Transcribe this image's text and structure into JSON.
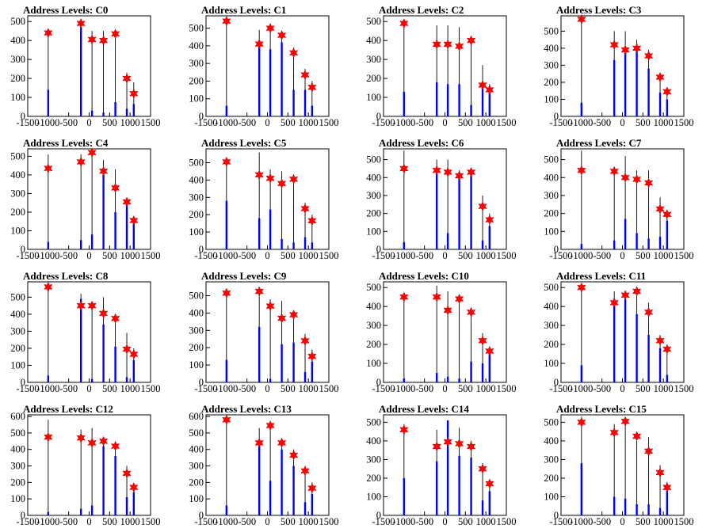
{
  "figure": {
    "title_prefix": "Address Levels: ",
    "colors": {
      "histogram": "#0000ff",
      "spike": "#000000",
      "marker": "#ff0000",
      "frame": "#000000"
    },
    "marker_shape": "star-icon"
  },
  "chart_data": [
    {
      "type": "bar",
      "title": "Address Levels: C0",
      "xlim": [
        -1500,
        1500
      ],
      "ylim": [
        0,
        530
      ],
      "xticks": [
        -1500,
        -1000,
        -500,
        0,
        500,
        1000,
        1500
      ],
      "yticks": [
        0,
        100,
        200,
        300,
        400,
        500
      ],
      "peaks": [
        {
          "x": -1000,
          "spike": 460,
          "bar": 140,
          "marker": 440
        },
        {
          "x": -200,
          "spike": 500,
          "bar": 470,
          "marker": 490
        },
        {
          "x": 70,
          "spike": 450,
          "bar": 30,
          "marker": 405
        },
        {
          "x": 350,
          "spike": 450,
          "bar": 20,
          "marker": 400
        },
        {
          "x": 640,
          "spike": 450,
          "bar": 75,
          "marker": 435
        },
        {
          "x": 920,
          "spike": 230,
          "bar": 40,
          "marker": 200
        },
        {
          "x": 1090,
          "spike": 180,
          "bar": 65,
          "marker": 120
        }
      ]
    },
    {
      "type": "bar",
      "title": "Address Levels: C1",
      "xlim": [
        -1500,
        1500
      ],
      "ylim": [
        0,
        570
      ],
      "xticks": [
        -1500,
        -1000,
        -500,
        0,
        500,
        1000,
        1500
      ],
      "yticks": [
        0,
        100,
        200,
        300,
        400,
        500
      ],
      "peaks": [
        {
          "x": -1000,
          "spike": 550,
          "bar": 60,
          "marker": 540
        },
        {
          "x": -200,
          "spike": 490,
          "bar": 430,
          "marker": 410
        },
        {
          "x": 70,
          "spike": 510,
          "bar": 380,
          "marker": 500
        },
        {
          "x": 350,
          "spike": 460,
          "bar": 420,
          "marker": 460
        },
        {
          "x": 640,
          "spike": 390,
          "bar": 150,
          "marker": 360
        },
        {
          "x": 920,
          "spike": 270,
          "bar": 150,
          "marker": 235
        },
        {
          "x": 1090,
          "spike": 200,
          "bar": 60,
          "marker": 165
        }
      ]
    },
    {
      "type": "bar",
      "title": "Address Levels: C2",
      "xlim": [
        -1500,
        1500
      ],
      "ylim": [
        0,
        530
      ],
      "xticks": [
        -1500,
        -1000,
        -500,
        0,
        500,
        1000,
        1500
      ],
      "yticks": [
        0,
        100,
        200,
        300,
        400,
        500
      ],
      "peaks": [
        {
          "x": -1000,
          "spike": 500,
          "bar": 130,
          "marker": 490
        },
        {
          "x": -200,
          "spike": 480,
          "bar": 180,
          "marker": 380
        },
        {
          "x": 70,
          "spike": 480,
          "bar": 170,
          "marker": 380
        },
        {
          "x": 350,
          "spike": 470,
          "bar": 170,
          "marker": 370
        },
        {
          "x": 640,
          "spike": 420,
          "bar": 60,
          "marker": 400
        },
        {
          "x": 920,
          "spike": 270,
          "bar": 150,
          "marker": 165
        },
        {
          "x": 1090,
          "spike": 170,
          "bar": 130,
          "marker": 140
        }
      ]
    },
    {
      "type": "bar",
      "title": "Address Levels: C3",
      "xlim": [
        -1500,
        1500
      ],
      "ylim": [
        0,
        590
      ],
      "xticks": [
        -1500,
        -1000,
        -500,
        0,
        500,
        1000,
        1500
      ],
      "yticks": [
        0,
        100,
        200,
        300,
        400,
        500
      ],
      "peaks": [
        {
          "x": -1000,
          "spike": 580,
          "bar": 80,
          "marker": 570
        },
        {
          "x": -200,
          "spike": 500,
          "bar": 330,
          "marker": 420
        },
        {
          "x": 70,
          "spike": 500,
          "bar": 370,
          "marker": 390
        },
        {
          "x": 350,
          "spike": 450,
          "bar": 390,
          "marker": 400
        },
        {
          "x": 640,
          "spike": 390,
          "bar": 280,
          "marker": 355
        },
        {
          "x": 920,
          "spike": 250,
          "bar": 140,
          "marker": 230
        },
        {
          "x": 1090,
          "spike": 170,
          "bar": 100,
          "marker": 145
        }
      ]
    },
    {
      "type": "bar",
      "title": "Address Levels: C4",
      "xlim": [
        -1500,
        1500
      ],
      "ylim": [
        0,
        540
      ],
      "xticks": [
        -1500,
        -1000,
        -500,
        0,
        500,
        1000,
        1500
      ],
      "yticks": [
        0,
        100,
        200,
        300,
        400,
        500
      ],
      "peaks": [
        {
          "x": -1000,
          "spike": 510,
          "bar": 40,
          "marker": 435
        },
        {
          "x": -200,
          "spike": 510,
          "bar": 50,
          "marker": 470
        },
        {
          "x": 70,
          "spike": 540,
          "bar": 80,
          "marker": 520
        },
        {
          "x": 350,
          "spike": 480,
          "bar": 400,
          "marker": 420
        },
        {
          "x": 640,
          "spike": 430,
          "bar": 200,
          "marker": 330
        },
        {
          "x": 920,
          "spike": 270,
          "bar": 260,
          "marker": 255
        },
        {
          "x": 1090,
          "spike": 170,
          "bar": 160,
          "marker": 155
        }
      ]
    },
    {
      "type": "bar",
      "title": "Address Levels: C5",
      "xlim": [
        -1500,
        1500
      ],
      "ylim": [
        0,
        580
      ],
      "xticks": [
        -1500,
        -1000,
        -500,
        0,
        500,
        1000,
        1500
      ],
      "yticks": [
        0,
        100,
        200,
        300,
        400,
        500
      ],
      "peaks": [
        {
          "x": -1000,
          "spike": 510,
          "bar": 280,
          "marker": 505
        },
        {
          "x": -200,
          "spike": 560,
          "bar": 180,
          "marker": 430
        },
        {
          "x": 70,
          "spike": 460,
          "bar": 230,
          "marker": 410
        },
        {
          "x": 350,
          "spike": 450,
          "bar": 60,
          "marker": 380
        },
        {
          "x": 640,
          "spike": 410,
          "bar": 40,
          "marker": 405
        },
        {
          "x": 920,
          "spike": 270,
          "bar": 70,
          "marker": 235
        },
        {
          "x": 1090,
          "spike": 200,
          "bar": 40,
          "marker": 165
        }
      ]
    },
    {
      "type": "bar",
      "title": "Address Levels: C6",
      "xlim": [
        -1500,
        1500
      ],
      "ylim": [
        0,
        560
      ],
      "xticks": [
        -1500,
        -1000,
        -500,
        0,
        500,
        1000,
        1500
      ],
      "yticks": [
        0,
        100,
        200,
        300,
        400,
        500
      ],
      "peaks": [
        {
          "x": -1000,
          "spike": 550,
          "bar": 40,
          "marker": 450
        },
        {
          "x": -200,
          "spike": 500,
          "bar": 420,
          "marker": 440
        },
        {
          "x": 70,
          "spike": 500,
          "bar": 90,
          "marker": 430
        },
        {
          "x": 350,
          "spike": 440,
          "bar": 430,
          "marker": 410
        },
        {
          "x": 640,
          "spike": 430,
          "bar": 410,
          "marker": 430
        },
        {
          "x": 920,
          "spike": 300,
          "bar": 50,
          "marker": 240
        },
        {
          "x": 1090,
          "spike": 200,
          "bar": 130,
          "marker": 165
        }
      ]
    },
    {
      "type": "bar",
      "title": "Address Levels: C7",
      "xlim": [
        -1500,
        1500
      ],
      "ylim": [
        0,
        560
      ],
      "xticks": [
        -1500,
        -1000,
        -500,
        0,
        500,
        1000,
        1500
      ],
      "yticks": [
        0,
        100,
        200,
        300,
        400,
        500
      ],
      "peaks": [
        {
          "x": -1000,
          "spike": 550,
          "bar": 30,
          "marker": 440
        },
        {
          "x": -200,
          "spike": 460,
          "bar": 50,
          "marker": 435
        },
        {
          "x": 70,
          "spike": 520,
          "bar": 170,
          "marker": 400
        },
        {
          "x": 350,
          "spike": 440,
          "bar": 90,
          "marker": 390
        },
        {
          "x": 640,
          "spike": 440,
          "bar": 60,
          "marker": 370
        },
        {
          "x": 920,
          "spike": 290,
          "bar": 70,
          "marker": 225
        },
        {
          "x": 1090,
          "spike": 210,
          "bar": 160,
          "marker": 195
        }
      ]
    },
    {
      "type": "bar",
      "title": "Address Levels: C8",
      "xlim": [
        -1500,
        1500
      ],
      "ylim": [
        0,
        590
      ],
      "xticks": [
        -1500,
        -1000,
        -500,
        0,
        500,
        1000,
        1500
      ],
      "yticks": [
        0,
        100,
        200,
        300,
        400,
        500
      ],
      "peaks": [
        {
          "x": -1000,
          "spike": 580,
          "bar": 40,
          "marker": 560
        },
        {
          "x": -200,
          "spike": 520,
          "bar": 490,
          "marker": 450
        },
        {
          "x": 70,
          "spike": 470,
          "bar": 20,
          "marker": 450
        },
        {
          "x": 350,
          "spike": 500,
          "bar": 340,
          "marker": 405
        },
        {
          "x": 640,
          "spike": 400,
          "bar": 210,
          "marker": 375
        },
        {
          "x": 920,
          "spike": 290,
          "bar": 30,
          "marker": 195
        },
        {
          "x": 1090,
          "spike": 200,
          "bar": 130,
          "marker": 165
        }
      ]
    },
    {
      "type": "bar",
      "title": "Address Levels: C9",
      "xlim": [
        -1500,
        1500
      ],
      "ylim": [
        0,
        580
      ],
      "xticks": [
        -1500,
        -1000,
        -500,
        0,
        500,
        1000,
        1500
      ],
      "yticks": [
        0,
        100,
        200,
        300,
        400,
        500
      ],
      "peaks": [
        {
          "x": -1000,
          "spike": 540,
          "bar": 130,
          "marker": 515
        },
        {
          "x": -200,
          "spike": 530,
          "bar": 320,
          "marker": 525
        },
        {
          "x": 70,
          "spike": 480,
          "bar": 20,
          "marker": 440
        },
        {
          "x": 350,
          "spike": 470,
          "bar": 220,
          "marker": 370
        },
        {
          "x": 640,
          "spike": 400,
          "bar": 230,
          "marker": 390
        },
        {
          "x": 920,
          "spike": 280,
          "bar": 60,
          "marker": 240
        },
        {
          "x": 1090,
          "spike": 190,
          "bar": 120,
          "marker": 150
        }
      ]
    },
    {
      "type": "bar",
      "title": "Address Levels: C10",
      "xlim": [
        -1500,
        1500
      ],
      "ylim": [
        0,
        530
      ],
      "xticks": [
        -1500,
        -1000,
        -500,
        0,
        500,
        1000,
        1500
      ],
      "yticks": [
        0,
        100,
        200,
        300,
        400,
        500
      ],
      "peaks": [
        {
          "x": -1000,
          "spike": 470,
          "bar": 20,
          "marker": 450
        },
        {
          "x": -200,
          "spike": 510,
          "bar": 50,
          "marker": 450
        },
        {
          "x": 70,
          "spike": 480,
          "bar": 30,
          "marker": 380
        },
        {
          "x": 350,
          "spike": 440,
          "bar": 20,
          "marker": 440
        },
        {
          "x": 640,
          "spike": 390,
          "bar": 110,
          "marker": 370
        },
        {
          "x": 920,
          "spike": 260,
          "bar": 100,
          "marker": 220
        },
        {
          "x": 1090,
          "spike": 190,
          "bar": 150,
          "marker": 165
        }
      ]
    },
    {
      "type": "bar",
      "title": "Address Levels: C11",
      "xlim": [
        -1500,
        1500
      ],
      "ylim": [
        0,
        530
      ],
      "xticks": [
        -1500,
        -1000,
        -500,
        0,
        500,
        1000,
        1500
      ],
      "yticks": [
        0,
        100,
        200,
        300,
        400,
        500
      ],
      "peaks": [
        {
          "x": -1000,
          "spike": 510,
          "bar": 90,
          "marker": 500
        },
        {
          "x": -200,
          "spike": 480,
          "bar": 440,
          "marker": 420
        },
        {
          "x": 70,
          "spike": 480,
          "bar": 440,
          "marker": 460
        },
        {
          "x": 350,
          "spike": 480,
          "bar": 360,
          "marker": 480
        },
        {
          "x": 640,
          "spike": 420,
          "bar": 250,
          "marker": 370
        },
        {
          "x": 920,
          "spike": 250,
          "bar": 180,
          "marker": 220
        },
        {
          "x": 1090,
          "spike": 200,
          "bar": 40,
          "marker": 175
        }
      ]
    },
    {
      "type": "bar",
      "title": "Address Levels: C12",
      "xlim": [
        -1500,
        1500
      ],
      "ylim": [
        0,
        610
      ],
      "xticks": [
        -1500,
        -1000,
        -500,
        0,
        500,
        1000,
        1500
      ],
      "yticks": [
        0,
        100,
        200,
        300,
        400,
        500,
        600
      ],
      "peaks": [
        {
          "x": -1000,
          "spike": 580,
          "bar": 20,
          "marker": 475
        },
        {
          "x": -200,
          "spike": 520,
          "bar": 40,
          "marker": 470
        },
        {
          "x": 70,
          "spike": 530,
          "bar": 60,
          "marker": 440
        },
        {
          "x": 350,
          "spike": 460,
          "bar": 420,
          "marker": 450
        },
        {
          "x": 640,
          "spike": 450,
          "bar": 360,
          "marker": 420
        },
        {
          "x": 920,
          "spike": 300,
          "bar": 110,
          "marker": 255
        },
        {
          "x": 1090,
          "spike": 190,
          "bar": 140,
          "marker": 170
        }
      ]
    },
    {
      "type": "bar",
      "title": "Address Levels: C13",
      "xlim": [
        -1500,
        1500
      ],
      "ylim": [
        0,
        610
      ],
      "xticks": [
        -1500,
        -1000,
        -500,
        0,
        500,
        1000,
        1500
      ],
      "yticks": [
        0,
        100,
        200,
        300,
        400,
        500,
        600
      ],
      "peaks": [
        {
          "x": -1000,
          "spike": 590,
          "bar": 60,
          "marker": 580
        },
        {
          "x": -200,
          "spike": 530,
          "bar": 420,
          "marker": 440
        },
        {
          "x": 70,
          "spike": 550,
          "bar": 210,
          "marker": 545
        },
        {
          "x": 350,
          "spike": 470,
          "bar": 400,
          "marker": 440
        },
        {
          "x": 640,
          "spike": 400,
          "bar": 300,
          "marker": 365
        },
        {
          "x": 920,
          "spike": 300,
          "bar": 80,
          "marker": 270
        },
        {
          "x": 1090,
          "spike": 200,
          "bar": 130,
          "marker": 165
        }
      ]
    },
    {
      "type": "bar",
      "title": "Address Levels: C14",
      "xlim": [
        -1500,
        1500
      ],
      "ylim": [
        0,
        540
      ],
      "xticks": [
        -1500,
        -1000,
        -500,
        0,
        500,
        1000,
        1500
      ],
      "yticks": [
        0,
        100,
        200,
        300,
        400,
        500
      ],
      "peaks": [
        {
          "x": -1000,
          "spike": 490,
          "bar": 200,
          "marker": 460
        },
        {
          "x": -200,
          "spike": 460,
          "bar": 290,
          "marker": 370
        },
        {
          "x": 70,
          "spike": 510,
          "bar": 510,
          "marker": 395
        },
        {
          "x": 350,
          "spike": 470,
          "bar": 320,
          "marker": 385
        },
        {
          "x": 640,
          "spike": 400,
          "bar": 310,
          "marker": 370
        },
        {
          "x": 920,
          "spike": 280,
          "bar": 80,
          "marker": 250
        },
        {
          "x": 1090,
          "spike": 190,
          "bar": 130,
          "marker": 170
        }
      ]
    },
    {
      "type": "bar",
      "title": "Address Levels: C15",
      "xlim": [
        -1500,
        1500
      ],
      "ylim": [
        0,
        540
      ],
      "xticks": [
        -1500,
        -1000,
        -500,
        0,
        500,
        1000,
        1500
      ],
      "yticks": [
        0,
        100,
        200,
        300,
        400,
        500
      ],
      "peaks": [
        {
          "x": -1000,
          "spike": 530,
          "bar": 280,
          "marker": 500
        },
        {
          "x": -200,
          "spike": 490,
          "bar": 100,
          "marker": 445
        },
        {
          "x": 70,
          "spike": 500,
          "bar": 90,
          "marker": 505
        },
        {
          "x": 350,
          "spike": 450,
          "bar": 60,
          "marker": 425
        },
        {
          "x": 640,
          "spike": 420,
          "bar": 60,
          "marker": 345
        },
        {
          "x": 920,
          "spike": 270,
          "bar": 40,
          "marker": 230
        },
        {
          "x": 1090,
          "spike": 180,
          "bar": 170,
          "marker": 150
        }
      ]
    }
  ]
}
